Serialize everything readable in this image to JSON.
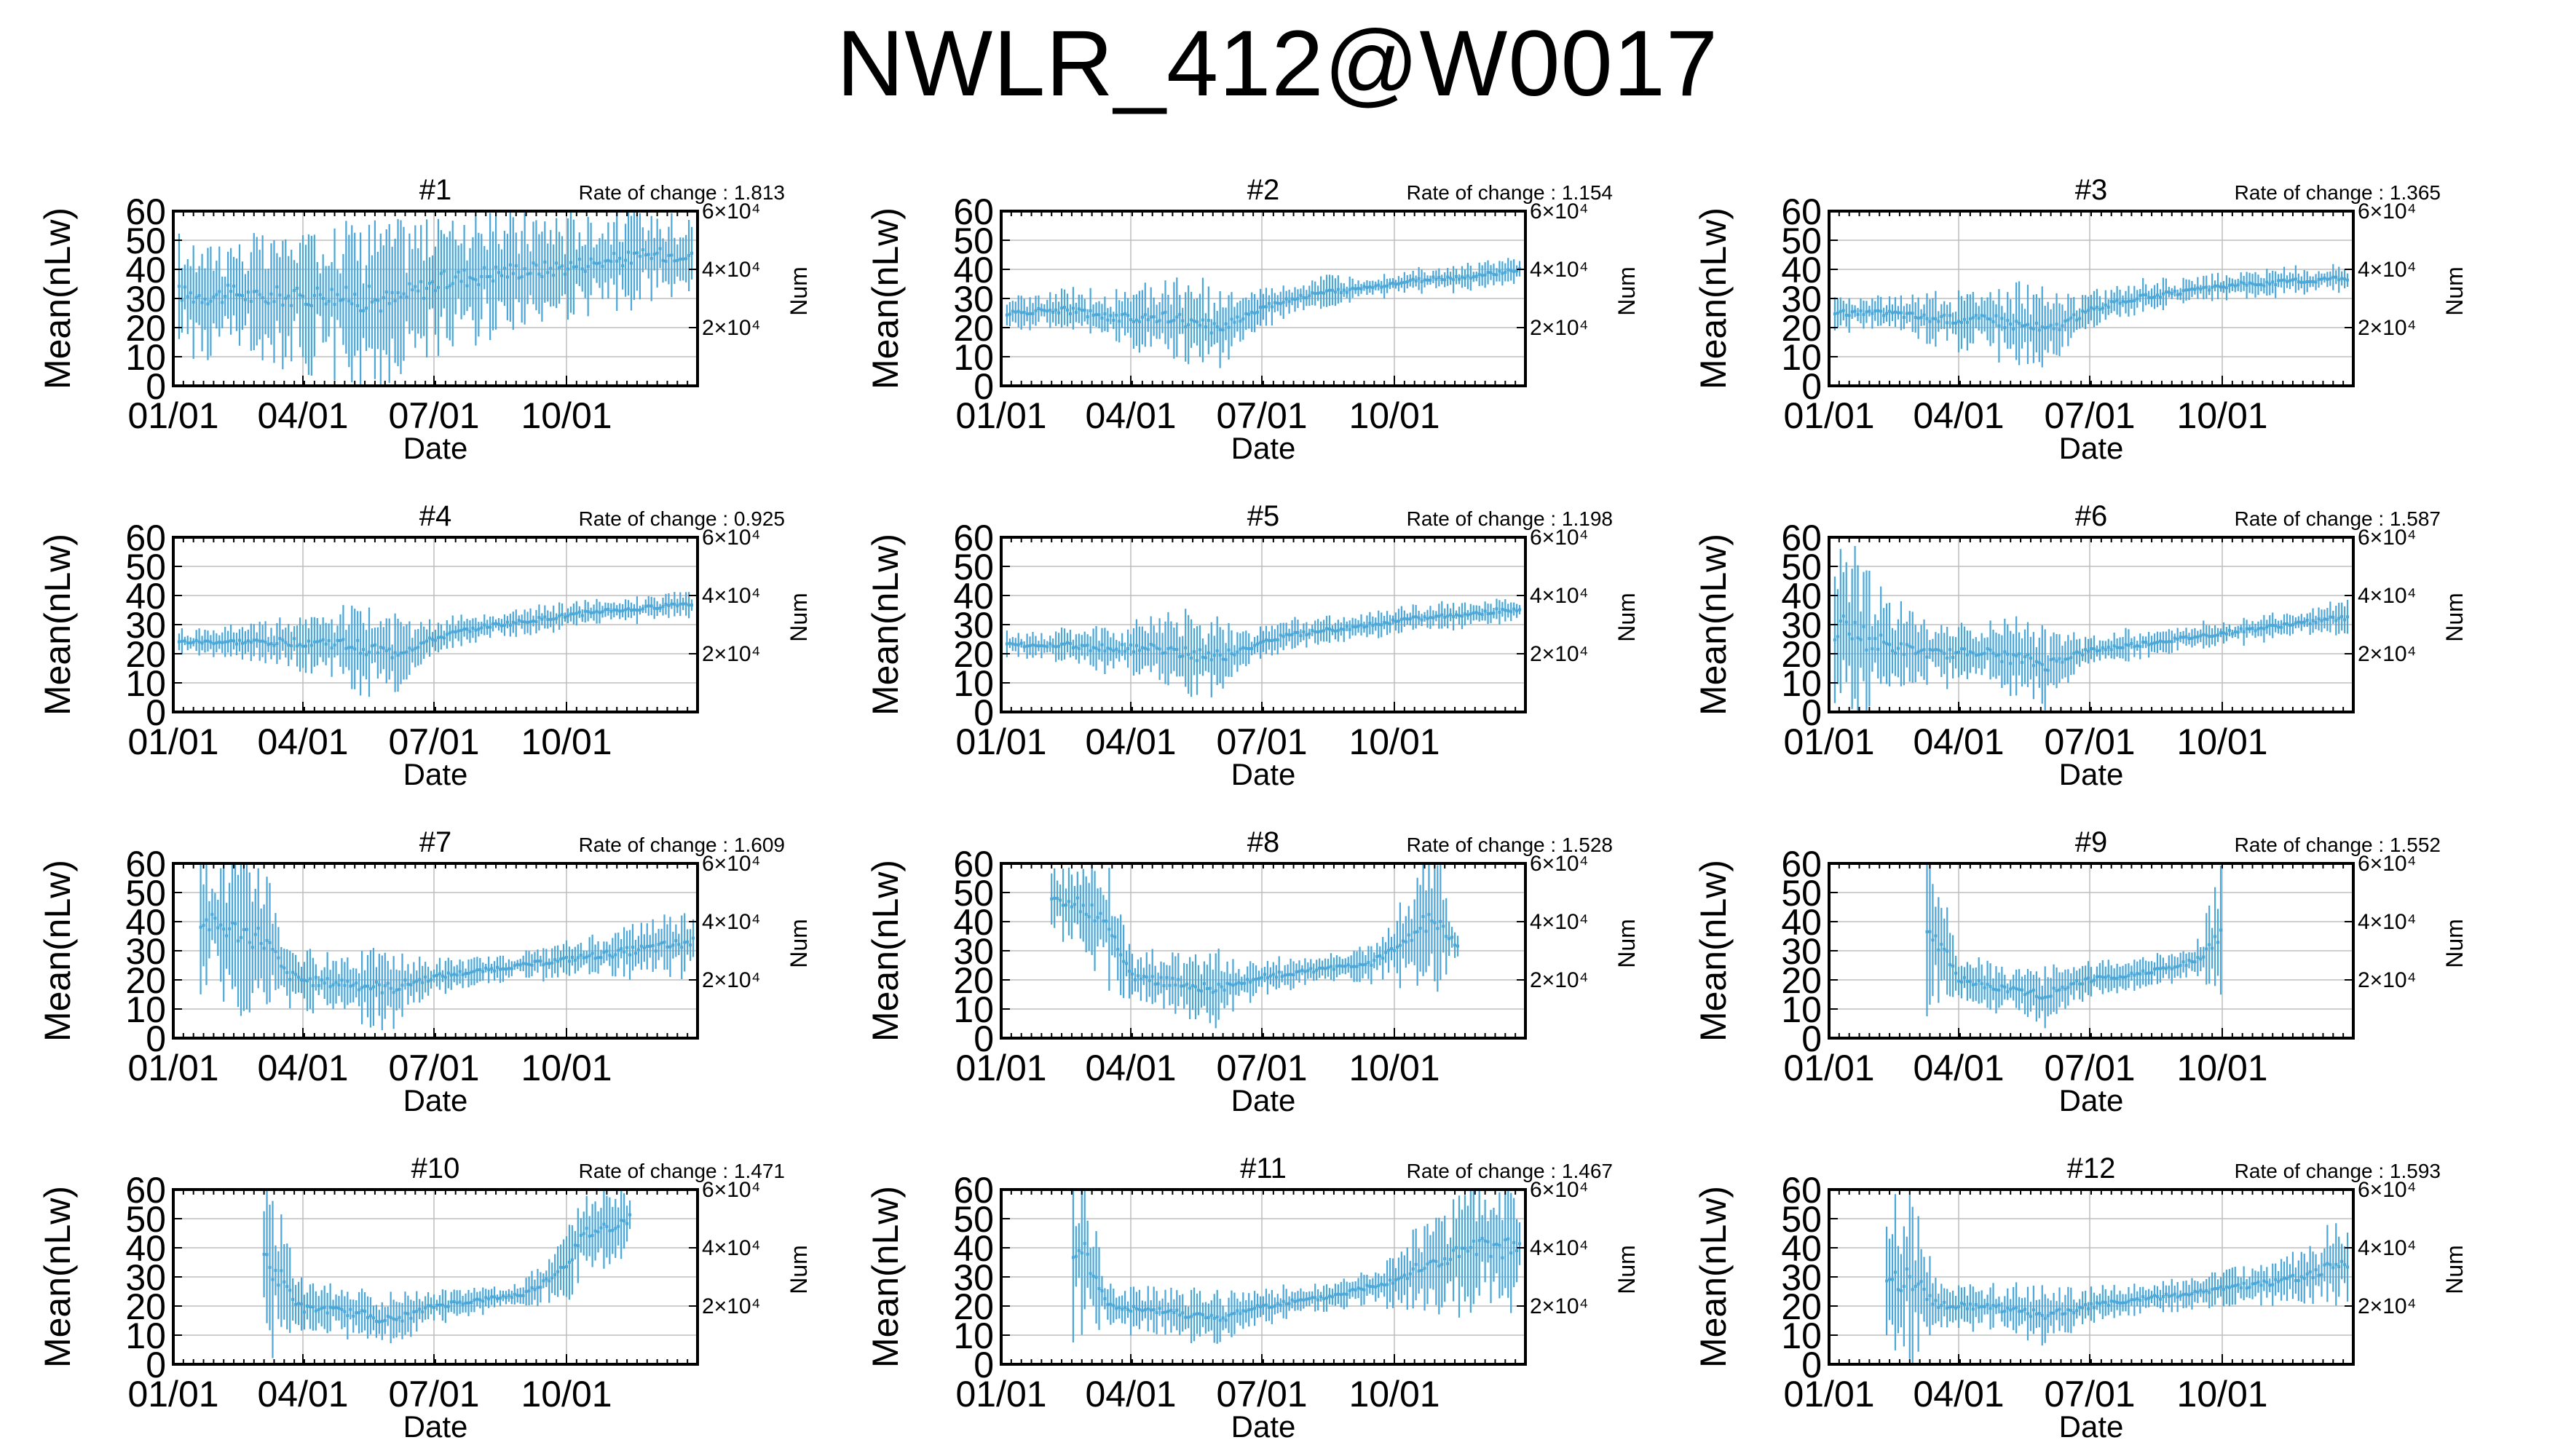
{
  "figure": {
    "title": "NWLR_412@W0017",
    "series_color": "#4aa7d8"
  },
  "chart_data": [
    {
      "type": "scatter",
      "title": "#1",
      "rate_label": "Rate of change : 1.813",
      "xlabel": "Date",
      "ylabel": "Mean(nLw)",
      "y2label": "Num",
      "ylim": [
        0,
        60
      ],
      "y2ticks": [
        "2×10⁴",
        "4×10⁴",
        "6×10⁴"
      ],
      "yticks": [
        "0",
        "10",
        "20",
        "30",
        "40",
        "50",
        "60"
      ],
      "xticks": [
        "01/01",
        "04/01",
        "07/01",
        "10/01"
      ],
      "xlim": [
        "01/01",
        "12/31"
      ],
      "grid": true,
      "x": [
        "01/05",
        "01/15",
        "02/01",
        "02/15",
        "03/01",
        "03/15",
        "04/01",
        "04/15",
        "05/01",
        "05/15",
        "06/01",
        "06/15",
        "07/01",
        "07/15",
        "08/01",
        "08/15",
        "09/01",
        "09/15",
        "10/01",
        "10/15",
        "11/01",
        "11/15",
        "12/01",
        "12/15",
        "12/28"
      ],
      "y": [
        32,
        31,
        31,
        32,
        30,
        31,
        30,
        32,
        30,
        30,
        29,
        32,
        35,
        37,
        38,
        39,
        40,
        40,
        41,
        42,
        43,
        44,
        45,
        45,
        46
      ],
      "spread": [
        16,
        17,
        18,
        17,
        18,
        19,
        20,
        21,
        24,
        26,
        24,
        22,
        20,
        20,
        19,
        18,
        17,
        17,
        16,
        15,
        15,
        14,
        13,
        13,
        12
      ]
    },
    {
      "type": "scatter",
      "title": "#2",
      "rate_label": "Rate of change : 1.154",
      "xlabel": "Date",
      "ylabel": "Mean(nLw)",
      "y2label": "Num",
      "ylim": [
        0,
        60
      ],
      "y2ticks": [
        "2×10⁴",
        "4×10⁴",
        "6×10⁴"
      ],
      "yticks": [
        "0",
        "10",
        "20",
        "30",
        "40",
        "50",
        "60"
      ],
      "xticks": [
        "01/01",
        "04/01",
        "07/01",
        "10/01"
      ],
      "xlim": [
        "01/01",
        "12/31"
      ],
      "grid": true,
      "x": [
        "01/05",
        "01/15",
        "02/01",
        "02/15",
        "03/01",
        "03/15",
        "04/01",
        "04/15",
        "05/01",
        "05/15",
        "06/01",
        "06/15",
        "07/01",
        "07/15",
        "08/01",
        "08/15",
        "09/01",
        "09/15",
        "10/01",
        "10/15",
        "11/01",
        "11/15",
        "12/01",
        "12/15",
        "12/28"
      ],
      "y": [
        25,
        25,
        26,
        26,
        25,
        24,
        23,
        24,
        23,
        21,
        20,
        23,
        27,
        29,
        31,
        32,
        33,
        34,
        35,
        36,
        37,
        37,
        38,
        39,
        40
      ],
      "spread": [
        5,
        5,
        5,
        6,
        7,
        8,
        9,
        10,
        12,
        13,
        12,
        8,
        6,
        5,
        5,
        5,
        4,
        4,
        4,
        4,
        4,
        4,
        4,
        4,
        4
      ]
    },
    {
      "type": "scatter",
      "title": "#3",
      "rate_label": "Rate of change : 1.365",
      "xlabel": "Date",
      "ylabel": "Mean(nLw)",
      "y2label": "Num",
      "ylim": [
        0,
        60
      ],
      "y2ticks": [
        "2×10⁴",
        "4×10⁴",
        "6×10⁴"
      ],
      "yticks": [
        "0",
        "10",
        "20",
        "30",
        "40",
        "50",
        "60"
      ],
      "xticks": [
        "01/01",
        "04/01",
        "07/01",
        "10/01"
      ],
      "xlim": [
        "01/01",
        "12/31"
      ],
      "grid": true,
      "x": [
        "01/05",
        "01/15",
        "02/01",
        "02/15",
        "03/01",
        "03/15",
        "04/01",
        "04/15",
        "05/01",
        "05/15",
        "06/01",
        "06/15",
        "07/01",
        "07/15",
        "08/01",
        "08/15",
        "09/01",
        "09/15",
        "10/01",
        "10/15",
        "11/01",
        "11/15",
        "12/01",
        "12/15",
        "12/28"
      ],
      "y": [
        25,
        25,
        25,
        25,
        24,
        23,
        23,
        23,
        22,
        21,
        19,
        22,
        26,
        28,
        30,
        31,
        32,
        33,
        34,
        35,
        35,
        36,
        36,
        37,
        37
      ],
      "spread": [
        5,
        5,
        5,
        6,
        7,
        8,
        9,
        9,
        11,
        13,
        12,
        8,
        6,
        5,
        5,
        5,
        4,
        4,
        4,
        4,
        4,
        4,
        4,
        4,
        4
      ]
    },
    {
      "type": "scatter",
      "title": "#4",
      "rate_label": "Rate of change : 0.925",
      "xlabel": "Date",
      "ylabel": "Mean(nLw)",
      "y2label": "Num",
      "ylim": [
        0,
        60
      ],
      "y2ticks": [
        "2×10⁴",
        "4×10⁴",
        "6×10⁴"
      ],
      "yticks": [
        "0",
        "10",
        "20",
        "30",
        "40",
        "50",
        "60"
      ],
      "xticks": [
        "01/01",
        "04/01",
        "07/01",
        "10/01"
      ],
      "xlim": [
        "01/01",
        "12/31"
      ],
      "grid": true,
      "x": [
        "01/05",
        "01/15",
        "02/01",
        "02/15",
        "03/01",
        "03/15",
        "04/01",
        "04/15",
        "05/01",
        "05/15",
        "06/01",
        "06/15",
        "07/01",
        "07/15",
        "08/01",
        "08/15",
        "09/01",
        "09/15",
        "10/01",
        "10/15",
        "11/01",
        "11/15",
        "12/01",
        "12/15",
        "12/28"
      ],
      "y": [
        24,
        24,
        24,
        24,
        24,
        24,
        24,
        24,
        23,
        22,
        20,
        22,
        25,
        27,
        29,
        30,
        31,
        32,
        33,
        34,
        35,
        35,
        36,
        37,
        37
      ],
      "spread": [
        4,
        4,
        4,
        5,
        6,
        7,
        9,
        10,
        12,
        14,
        13,
        8,
        5,
        5,
        4,
        4,
        4,
        4,
        4,
        4,
        4,
        4,
        4,
        4,
        4
      ]
    },
    {
      "type": "scatter",
      "title": "#5",
      "rate_label": "Rate of change : 1.198",
      "xlabel": "Date",
      "ylabel": "Mean(nLw)",
      "y2label": "Num",
      "ylim": [
        0,
        60
      ],
      "y2ticks": [
        "2×10⁴",
        "4×10⁴",
        "6×10⁴"
      ],
      "yticks": [
        "0",
        "10",
        "20",
        "30",
        "40",
        "50",
        "60"
      ],
      "xticks": [
        "01/01",
        "04/01",
        "07/01",
        "10/01"
      ],
      "xlim": [
        "01/01",
        "12/31"
      ],
      "grid": true,
      "x": [
        "01/05",
        "01/15",
        "02/01",
        "02/15",
        "03/01",
        "03/15",
        "04/01",
        "04/15",
        "05/01",
        "05/15",
        "06/01",
        "06/15",
        "07/01",
        "07/15",
        "08/01",
        "08/15",
        "09/01",
        "09/15",
        "10/01",
        "10/15",
        "11/01",
        "11/15",
        "12/01",
        "12/15",
        "12/28"
      ],
      "y": [
        23,
        23,
        23,
        23,
        22,
        22,
        22,
        22,
        21,
        20,
        19,
        21,
        24,
        26,
        27,
        28,
        29,
        30,
        31,
        32,
        33,
        33,
        34,
        35,
        35
      ],
      "spread": [
        4,
        4,
        4,
        5,
        6,
        7,
        8,
        9,
        11,
        13,
        12,
        7,
        5,
        5,
        4,
        4,
        4,
        4,
        4,
        4,
        4,
        4,
        4,
        4,
        4
      ]
    },
    {
      "type": "scatter",
      "title": "#6",
      "rate_label": "Rate of change : 1.587",
      "xlabel": "Date",
      "ylabel": "Mean(nLw)",
      "y2label": "Num",
      "ylim": [
        0,
        60
      ],
      "y2ticks": [
        "2×10⁴",
        "4×10⁴",
        "6×10⁴"
      ],
      "yticks": [
        "0",
        "10",
        "20",
        "30",
        "40",
        "50",
        "60"
      ],
      "xticks": [
        "01/01",
        "04/01",
        "07/01",
        "10/01"
      ],
      "xlim": [
        "01/01",
        "12/31"
      ],
      "grid": true,
      "x": [
        "01/05",
        "01/15",
        "02/01",
        "02/15",
        "03/01",
        "03/15",
        "04/01",
        "04/15",
        "05/01",
        "05/15",
        "06/01",
        "06/15",
        "07/01",
        "07/15",
        "08/01",
        "08/15",
        "09/01",
        "09/15",
        "10/01",
        "10/15",
        "11/01",
        "11/15",
        "12/01",
        "12/15",
        "12/28"
      ],
      "y": [
        30,
        28,
        24,
        22,
        21,
        20,
        20,
        21,
        19,
        18,
        16,
        19,
        21,
        22,
        23,
        24,
        25,
        26,
        27,
        28,
        29,
        30,
        31,
        32,
        32
      ],
      "spread": [
        30,
        28,
        22,
        14,
        10,
        9,
        9,
        9,
        11,
        13,
        12,
        8,
        5,
        5,
        5,
        4,
        4,
        4,
        4,
        4,
        4,
        4,
        4,
        5,
        5
      ]
    },
    {
      "type": "scatter",
      "title": "#7",
      "rate_label": "Rate of change : 1.609",
      "xlabel": "Date",
      "ylabel": "Mean(nLw)",
      "y2label": "Num",
      "ylim": [
        0,
        60
      ],
      "y2ticks": [
        "2×10⁴",
        "4×10⁴",
        "6×10⁴"
      ],
      "yticks": [
        "0",
        "10",
        "20",
        "30",
        "40",
        "50",
        "60"
      ],
      "xticks": [
        "01/01",
        "04/01",
        "07/01",
        "10/01"
      ],
      "xlim": [
        "01/01",
        "12/31"
      ],
      "grid": true,
      "x": [
        "01/20",
        "02/05",
        "02/20",
        "03/05",
        "03/20",
        "04/01",
        "04/15",
        "05/01",
        "05/15",
        "06/01",
        "06/15",
        "07/01",
        "07/15",
        "08/01",
        "08/15",
        "09/01",
        "09/15",
        "10/01",
        "10/15",
        "11/01",
        "11/15",
        "12/01",
        "12/15",
        "12/28"
      ],
      "y": [
        40,
        38,
        36,
        34,
        22,
        20,
        19,
        19,
        18,
        17,
        19,
        21,
        22,
        23,
        24,
        25,
        26,
        27,
        28,
        29,
        30,
        31,
        32,
        33
      ],
      "spread": [
        20,
        22,
        24,
        25,
        10,
        9,
        9,
        10,
        11,
        12,
        8,
        5,
        5,
        4,
        4,
        4,
        5,
        5,
        6,
        7,
        8,
        9,
        10,
        11
      ]
    },
    {
      "type": "scatter",
      "title": "#8",
      "rate_label": "Rate of change : 1.528",
      "xlabel": "Date",
      "ylabel": "Mean(nLw)",
      "y2label": "Num",
      "ylim": [
        0,
        60
      ],
      "y2ticks": [
        "2×10⁴",
        "4×10⁴",
        "6×10⁴"
      ],
      "yticks": [
        "0",
        "10",
        "20",
        "30",
        "40",
        "50",
        "60"
      ],
      "xticks": [
        "01/01",
        "04/01",
        "07/01",
        "10/01"
      ],
      "xlim": [
        "01/01",
        "12/31"
      ],
      "grid": true,
      "x": [
        "02/05",
        "03/01",
        "03/15",
        "04/01",
        "04/15",
        "05/01",
        "05/15",
        "06/01",
        "06/15",
        "07/01",
        "07/15",
        "08/01",
        "08/15",
        "09/01",
        "09/15",
        "10/01",
        "10/15",
        "11/01",
        "11/15"
      ],
      "y": [
        48,
        45,
        40,
        21,
        20,
        19,
        18,
        17,
        19,
        21,
        22,
        23,
        24,
        25,
        26,
        30,
        38,
        40,
        30
      ],
      "spread": [
        12,
        15,
        20,
        8,
        8,
        9,
        10,
        11,
        7,
        5,
        5,
        4,
        4,
        5,
        6,
        12,
        20,
        18,
        5
      ]
    },
    {
      "type": "scatter",
      "title": "#9",
      "rate_label": "Rate of change : 1.552",
      "xlabel": "Date",
      "ylabel": "Mean(nLw)",
      "y2label": "Num",
      "ylim": [
        0,
        60
      ],
      "y2ticks": [
        "2×10⁴",
        "4×10⁴",
        "6×10⁴"
      ],
      "yticks": [
        "0",
        "10",
        "20",
        "30",
        "40",
        "50",
        "60"
      ],
      "xticks": [
        "01/01",
        "04/01",
        "07/01",
        "10/01"
      ],
      "xlim": [
        "01/01",
        "12/31"
      ],
      "grid": true,
      "x": [
        "03/10",
        "03/20",
        "04/01",
        "04/15",
        "05/01",
        "05/15",
        "06/01",
        "06/15",
        "07/01",
        "07/15",
        "08/01",
        "08/15",
        "09/01",
        "09/15",
        "10/01"
      ],
      "y": [
        35,
        30,
        20,
        19,
        17,
        16,
        15,
        18,
        20,
        21,
        22,
        23,
        25,
        27,
        35
      ],
      "spread": [
        25,
        28,
        7,
        7,
        7,
        8,
        9,
        7,
        5,
        5,
        5,
        5,
        5,
        6,
        20
      ]
    },
    {
      "type": "scatter",
      "title": "#10",
      "rate_label": "Rate of change : 1.471",
      "xlabel": "Date",
      "ylabel": "Mean(nLw)",
      "y2label": "Num",
      "ylim": [
        0,
        60
      ],
      "y2ticks": [
        "2×10⁴",
        "4×10⁴",
        "6×10⁴"
      ],
      "yticks": [
        "0",
        "10",
        "20",
        "30",
        "40",
        "50",
        "60"
      ],
      "xticks": [
        "01/01",
        "04/01",
        "07/01",
        "10/01"
      ],
      "xlim": [
        "01/01",
        "12/31"
      ],
      "grid": true,
      "x": [
        "03/05",
        "03/15",
        "04/01",
        "04/15",
        "05/01",
        "05/15",
        "06/01",
        "06/15",
        "07/01",
        "07/15",
        "08/01",
        "08/15",
        "09/01",
        "09/15",
        "10/01",
        "10/15",
        "11/15"
      ],
      "y": [
        35,
        30,
        19,
        19,
        18,
        17,
        15,
        17,
        20,
        21,
        22,
        23,
        24,
        28,
        35,
        45,
        50
      ],
      "spread": [
        20,
        25,
        7,
        7,
        7,
        8,
        9,
        7,
        5,
        5,
        4,
        4,
        4,
        6,
        12,
        15,
        10
      ]
    },
    {
      "type": "scatter",
      "title": "#11",
      "rate_label": "Rate of change : 1.467",
      "xlabel": "Date",
      "ylabel": "Mean(nLw)",
      "y2label": "Num",
      "ylim": [
        0,
        60
      ],
      "y2ticks": [
        "2×10⁴",
        "4×10⁴",
        "6×10⁴"
      ],
      "yticks": [
        "0",
        "10",
        "20",
        "30",
        "40",
        "50",
        "60"
      ],
      "xticks": [
        "01/01",
        "04/01",
        "07/01",
        "10/01"
      ],
      "xlim": [
        "01/01",
        "12/31"
      ],
      "grid": true,
      "x": [
        "02/20",
        "03/01",
        "03/15",
        "04/01",
        "04/15",
        "05/01",
        "05/15",
        "06/01",
        "06/15",
        "07/01",
        "07/15",
        "08/01",
        "08/15",
        "09/01",
        "09/15",
        "10/01",
        "10/15",
        "11/01",
        "11/15",
        "12/01",
        "12/15",
        "12/28"
      ],
      "y": [
        40,
        38,
        20,
        19,
        18,
        18,
        17,
        15,
        18,
        20,
        21,
        22,
        23,
        25,
        27,
        29,
        32,
        35,
        38,
        40,
        40,
        40
      ],
      "spread": [
        25,
        25,
        8,
        7,
        7,
        7,
        8,
        8,
        6,
        5,
        5,
        4,
        4,
        5,
        6,
        8,
        12,
        15,
        18,
        20,
        20,
        20
      ]
    },
    {
      "type": "scatter",
      "title": "#12",
      "rate_label": "Rate of change : 1.593",
      "xlabel": "Date",
      "ylabel": "Mean(nLw)",
      "y2label": "Num",
      "ylim": [
        0,
        60
      ],
      "y2ticks": [
        "2×10⁴",
        "4×10⁴",
        "6×10⁴"
      ],
      "yticks": [
        "0",
        "10",
        "20",
        "30",
        "40",
        "50",
        "60"
      ],
      "xticks": [
        "01/01",
        "04/01",
        "07/01",
        "10/01"
      ],
      "xlim": [
        "01/01",
        "12/31"
      ],
      "grid": true,
      "x": [
        "02/10",
        "03/01",
        "03/15",
        "04/01",
        "04/15",
        "05/01",
        "05/15",
        "06/01",
        "06/15",
        "07/01",
        "07/15",
        "08/01",
        "08/15",
        "09/01",
        "09/15",
        "10/01",
        "10/15",
        "11/01",
        "11/15",
        "12/01",
        "12/15",
        "12/28"
      ],
      "y": [
        30,
        28,
        21,
        20,
        20,
        19,
        18,
        17,
        18,
        20,
        21,
        22,
        23,
        24,
        25,
        26,
        27,
        28,
        29,
        31,
        33,
        36
      ],
      "spread": [
        25,
        25,
        8,
        7,
        7,
        7,
        8,
        9,
        7,
        5,
        5,
        5,
        5,
        5,
        5,
        5,
        6,
        6,
        7,
        9,
        12,
        16
      ]
    }
  ]
}
